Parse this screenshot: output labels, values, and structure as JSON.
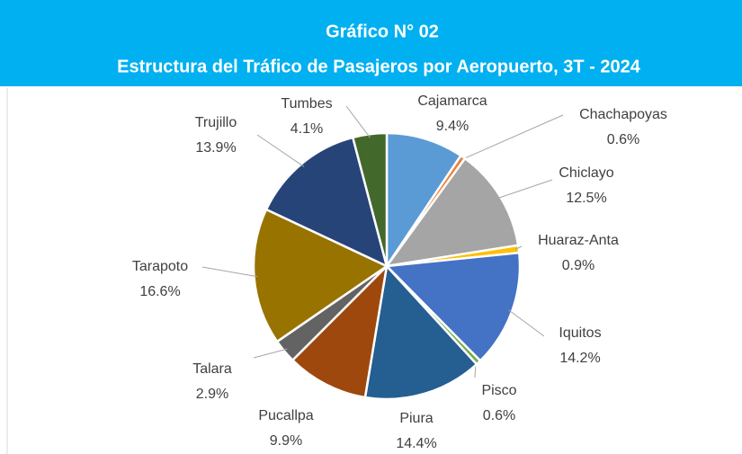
{
  "chart_data": {
    "type": "pie",
    "title": "Gráfico N° 02",
    "subtitle": "Estructura del Tráfico de Pasajeros por Aeropuerto, 3T - 2024",
    "categories": [
      "Cajamarca",
      "Chachapoyas",
      "Chiclayo",
      "Huaraz-Anta",
      "Iquitos",
      "Pisco",
      "Piura",
      "Pucallpa",
      "Talara",
      "Tarapoto",
      "Trujillo",
      "Tumbes"
    ],
    "values": [
      9.4,
      0.6,
      12.5,
      0.9,
      14.2,
      0.6,
      14.4,
      9.9,
      2.9,
      16.6,
      13.9,
      4.1
    ],
    "value_labels": [
      "9.4%",
      "0.6%",
      "12.5%",
      "0.9%",
      "14.2%",
      "0.6%",
      "14.4%",
      "9.9%",
      "2.9%",
      "16.6%",
      "13.9%",
      "4.1%"
    ],
    "colors": [
      "#5b9bd5",
      "#ed7d31",
      "#a5a5a5",
      "#ffc000",
      "#4472c4",
      "#70ad47",
      "#255e91",
      "#9e480e",
      "#636363",
      "#997300",
      "#264478",
      "#43682b"
    ]
  }
}
